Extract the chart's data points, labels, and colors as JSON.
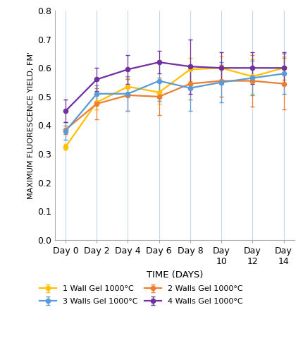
{
  "x_days": [
    0,
    2,
    4,
    6,
    8,
    10,
    12,
    14
  ],
  "x_labels": [
    "Day 0",
    "Day 2",
    "Day 4",
    "Day 6",
    "Day 8",
    "Day\n10",
    "Day\n12",
    "Day\n14"
  ],
  "series": [
    {
      "label": "1 Wall Gel 1000°C",
      "color": "#FFC000",
      "values": [
        0.325,
        0.48,
        0.535,
        0.515,
        0.595,
        0.6,
        0.57,
        0.6
      ],
      "errors": [
        0.01,
        0.025,
        0.03,
        0.04,
        0.04,
        0.04,
        0.06,
        0.04
      ]
    },
    {
      "label": "2 Walls Gel 1000°C",
      "color": "#ED7D31",
      "values": [
        0.385,
        0.475,
        0.505,
        0.5,
        0.545,
        0.555,
        0.555,
        0.545
      ],
      "errors": [
        0.015,
        0.055,
        0.055,
        0.065,
        0.055,
        0.055,
        0.09,
        0.09
      ]
    },
    {
      "label": "3 Walls Gel 1000°C",
      "color": "#5B9BD5",
      "values": [
        0.38,
        0.51,
        0.51,
        0.555,
        0.53,
        0.55,
        0.565,
        0.58
      ],
      "errors": [
        0.03,
        0.03,
        0.06,
        0.07,
        0.08,
        0.07,
        0.06,
        0.07
      ]
    },
    {
      "label": "4 Walls Gel 1000°C",
      "color": "#7030A0",
      "values": [
        0.45,
        0.56,
        0.595,
        0.62,
        0.605,
        0.6,
        0.6,
        0.6
      ],
      "errors": [
        0.04,
        0.04,
        0.05,
        0.04,
        0.095,
        0.055,
        0.055,
        0.055
      ]
    }
  ],
  "legend_order": [
    0,
    2,
    1,
    3
  ],
  "ylabel": "MAXIMUM FLUORESCENCE YIELD, FM'",
  "xlabel": "TIME (DAYS)",
  "ylim": [
    0.0,
    0.8
  ],
  "yticks": [
    0.0,
    0.1,
    0.2,
    0.3,
    0.4,
    0.5,
    0.6,
    0.7,
    0.8
  ],
  "grid_color": "#BDD7EE",
  "marker": "o",
  "markersize": 4.5,
  "linewidth": 1.6,
  "capsize": 2.5,
  "capthick": 1.0,
  "elinewidth": 0.9,
  "legend_ncol": 2,
  "legend_fontsize": 8.0,
  "axis_fontsize": 9,
  "ylabel_fontsize": 8.0,
  "xlabel_fontsize": 9.5
}
